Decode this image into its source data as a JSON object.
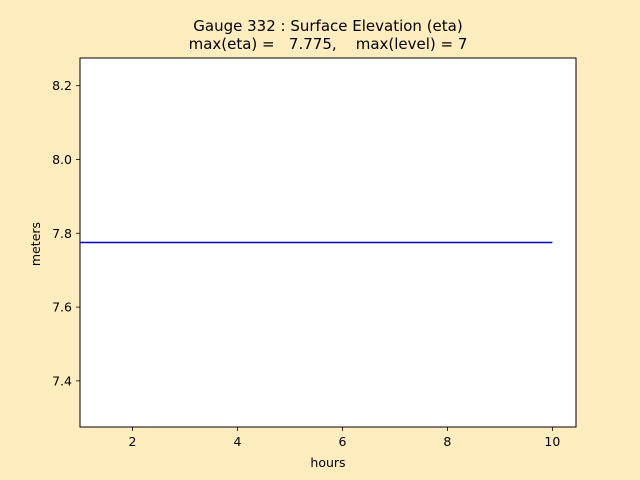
{
  "chart_data": {
    "type": "line",
    "title": "Gauge 332 : Surface Elevation (eta)",
    "subtitle": "max(eta) =   7.775,    max(level) = 7",
    "xlabel": "hours",
    "ylabel": "meters",
    "xlim": [
      1.0,
      10.45
    ],
    "ylim": [
      7.275,
      8.275
    ],
    "xticks": [
      2,
      4,
      6,
      8,
      10
    ],
    "yticks": [
      7.4,
      7.6,
      7.8,
      8.0,
      8.2
    ],
    "xtick_labels": [
      "2",
      "4",
      "6",
      "8",
      "10"
    ],
    "ytick_labels": [
      "7.4",
      "7.6",
      "7.8",
      "8.0",
      "8.2"
    ],
    "grid": false,
    "series": [
      {
        "color": "#0000cc",
        "x": [
          1.0,
          10.0
        ],
        "y": [
          7.775,
          7.775
        ]
      }
    ]
  },
  "colors": {
    "background": "#ffedc0",
    "plot_area": "#ffffff"
  }
}
